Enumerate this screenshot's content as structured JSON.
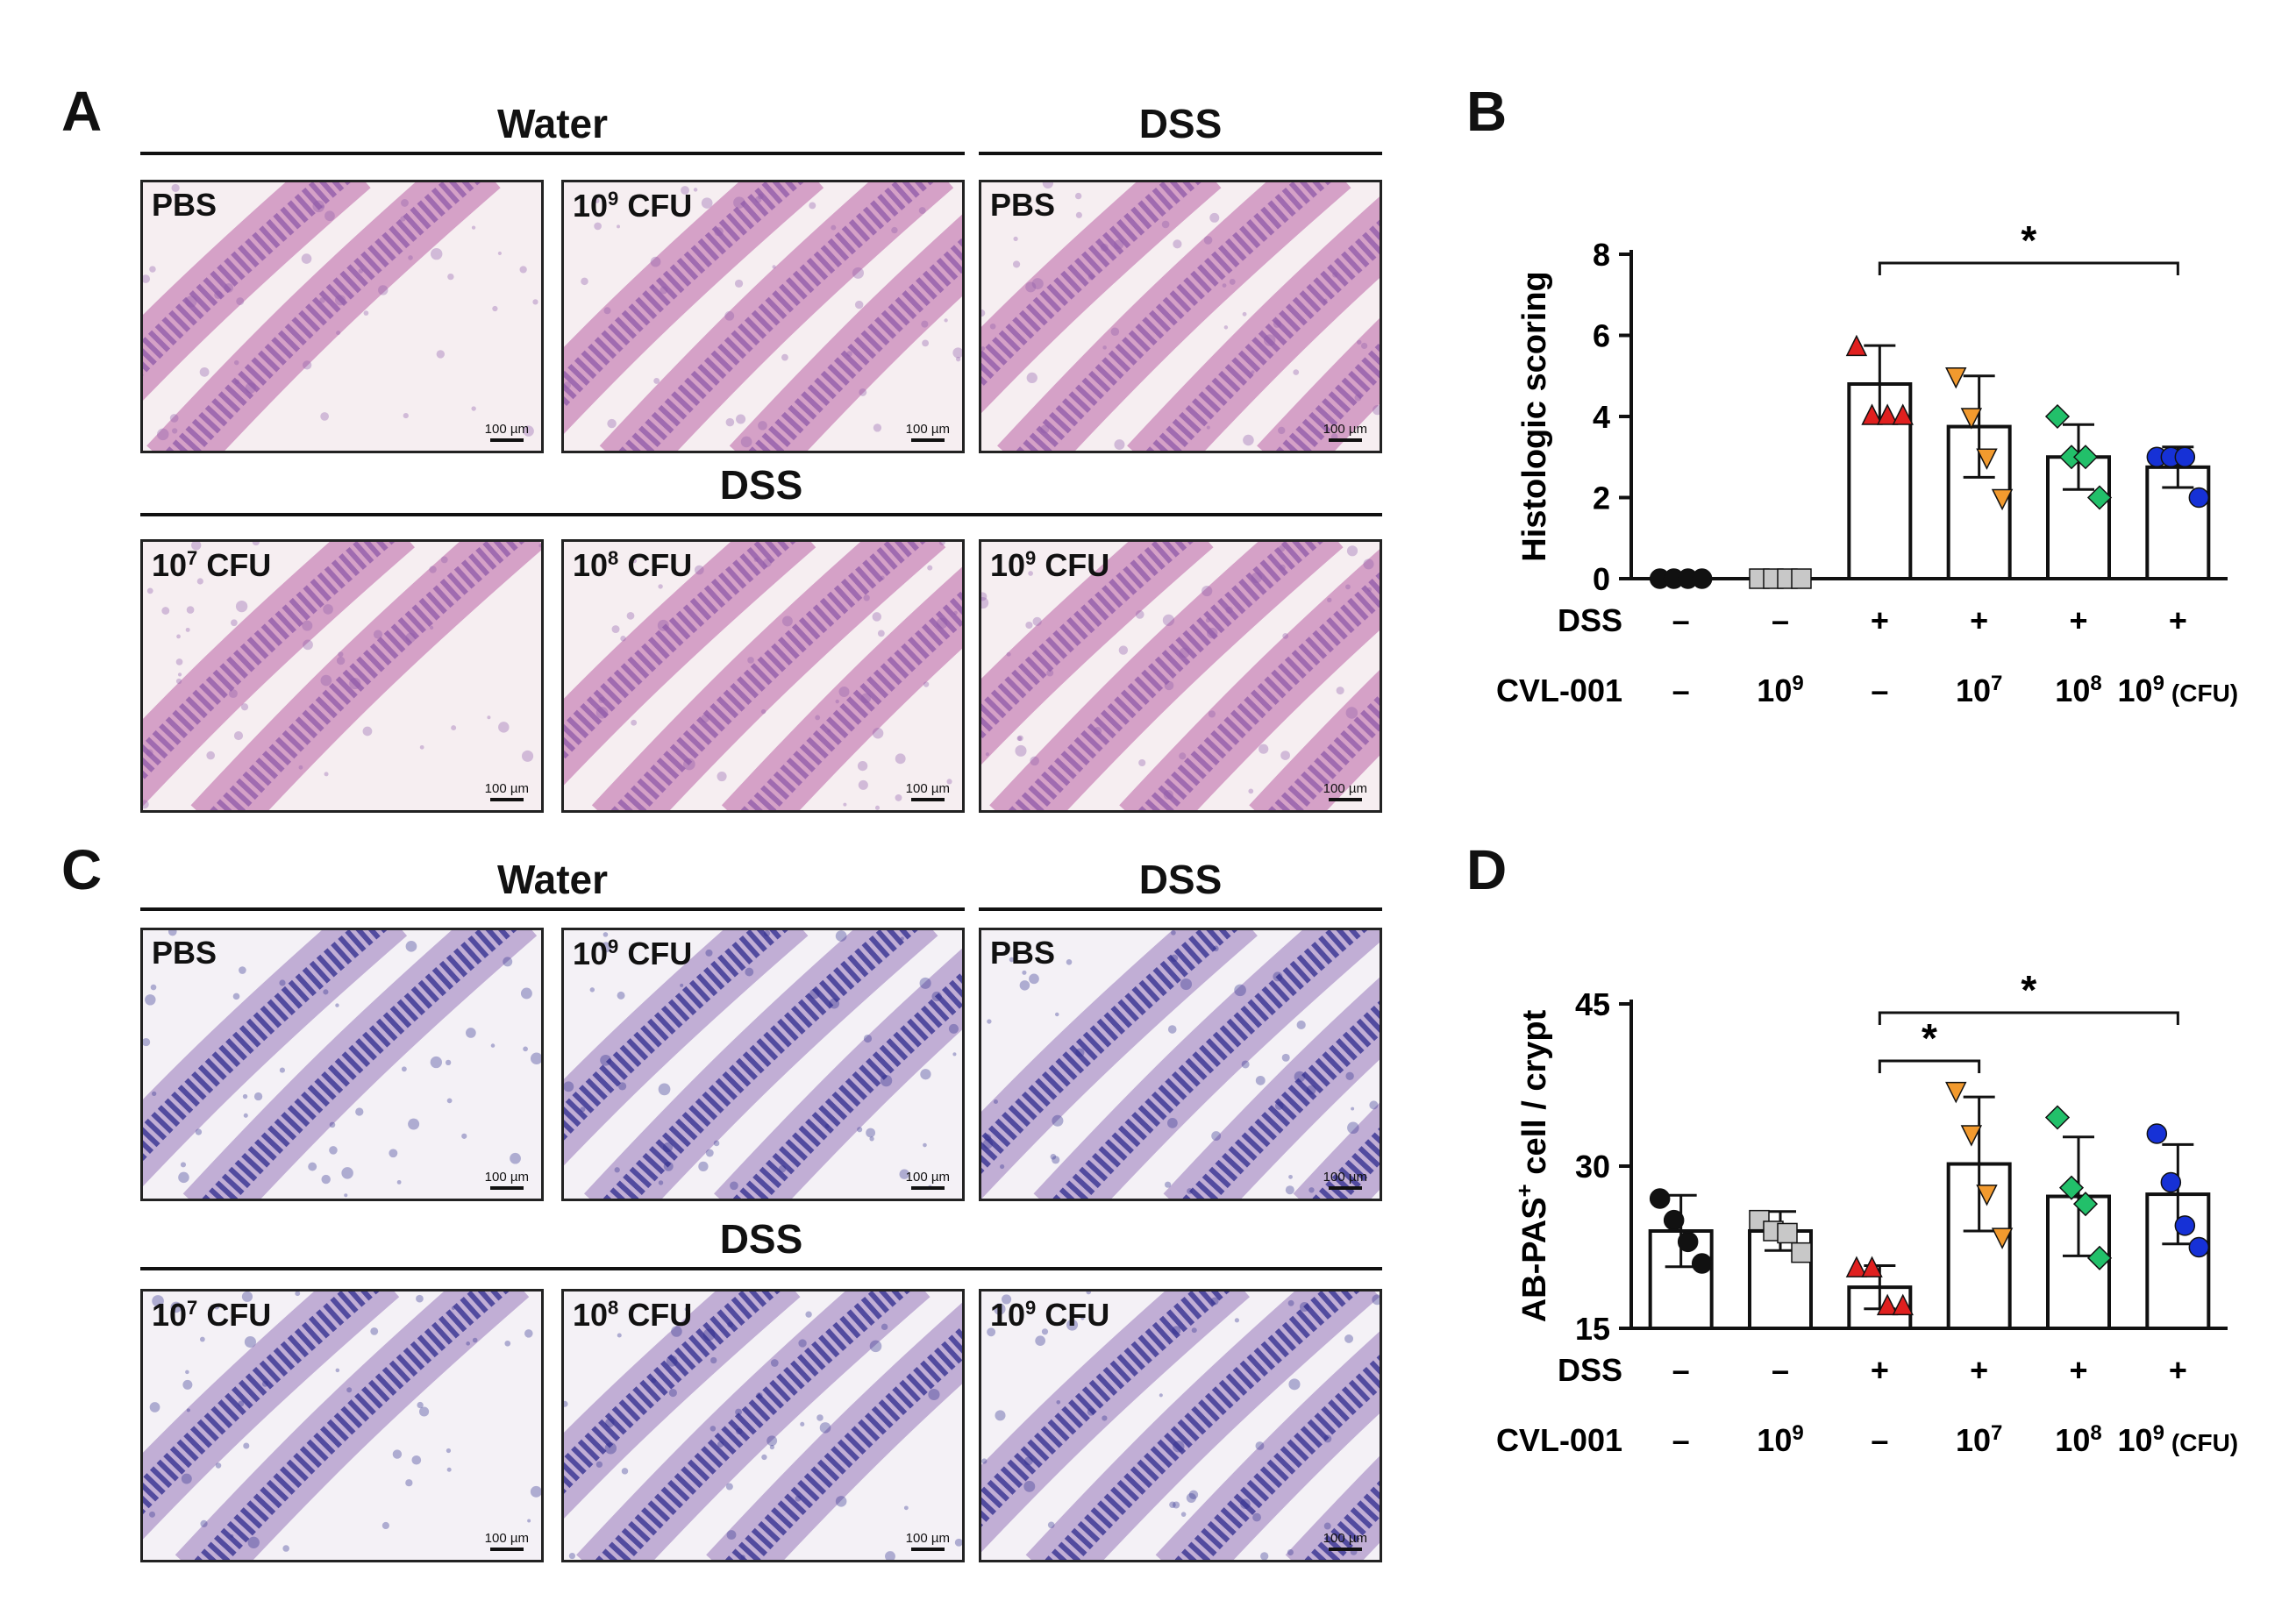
{
  "panels": {
    "A": "A",
    "B": "B",
    "C": "C",
    "D": "D"
  },
  "histology": {
    "water": "Water",
    "dss": "DSS",
    "scale": "100 µm",
    "labels": {
      "pbs": "PBS",
      "cfu9_base": "10",
      "cfu9_exp": "9",
      "cfu7_base": "10",
      "cfu7_exp": "7",
      "cfu8_base": "10",
      "cfu8_exp": "8",
      "cfu_unit": "CFU"
    },
    "colors": {
      "he_background": "#f6eef1",
      "he_tissue": "#cf93c0",
      "he_mucosa": "#8d5aa8",
      "pas_background": "#f4f1f6",
      "pas_tissue": "#b7a2cf",
      "pas_mucosa": "#2c2a8c"
    }
  },
  "conditions": {
    "dss_label": "DSS",
    "cvl_label": "CVL-001",
    "dss": [
      "–",
      "–",
      "+",
      "+",
      "+",
      "+"
    ],
    "cvl_base": [
      "–",
      "10",
      "–",
      "10",
      "10",
      "10"
    ],
    "cvl_exp": [
      "",
      "9",
      "",
      "7",
      "8",
      "9"
    ],
    "unit": "(CFU)"
  },
  "chart_data": [
    {
      "panel": "B",
      "type": "bar",
      "ylabel": "Histologic scoring",
      "ylim": [
        0,
        8
      ],
      "yticks": [
        0,
        2,
        4,
        6,
        8
      ],
      "groups": 6,
      "means": [
        0,
        0,
        4.8,
        3.75,
        3.0,
        2.75
      ],
      "sd": [
        0,
        0,
        0.95,
        1.25,
        0.8,
        0.5
      ],
      "points": [
        [
          0,
          0,
          0,
          0
        ],
        [
          0,
          0,
          0,
          0
        ],
        [
          5.7,
          4.0,
          4.0,
          4.0
        ],
        [
          5.0,
          4.0,
          3.0,
          2.0
        ],
        [
          4.0,
          3.0,
          3.0,
          2.0
        ],
        [
          3.0,
          3.0,
          3.0,
          2.0
        ]
      ],
      "markers": [
        "circle",
        "square",
        "triangle-up",
        "triangle-down",
        "diamond",
        "circle"
      ],
      "colors": [
        "#111111",
        "#c8c8c8",
        "#e0201f",
        "#f29a2e",
        "#22c06a",
        "#1631d6"
      ],
      "significance": [
        {
          "from": 2,
          "to": 5,
          "label": "*"
        }
      ]
    },
    {
      "panel": "D",
      "type": "bar",
      "ylabel": "AB-PAS+ cell / crypt",
      "ylabel_main": "AB-PAS",
      "ylabel_sup": "+",
      "ylabel_rest": " cell / crypt",
      "ylim": [
        15,
        45
      ],
      "yticks": [
        15,
        30,
        45
      ],
      "groups": 6,
      "means": [
        24.0,
        24.0,
        18.8,
        30.2,
        27.2,
        27.4
      ],
      "sd": [
        3.3,
        1.8,
        2.0,
        6.2,
        5.5,
        4.6
      ],
      "points": [
        [
          27.0,
          25.0,
          23.0,
          21.0
        ],
        [
          25.0,
          24.0,
          23.8,
          22.0
        ],
        [
          20.5,
          20.5,
          17.0,
          17.0
        ],
        [
          37.0,
          33.0,
          27.5,
          23.5
        ],
        [
          34.5,
          28.0,
          26.5,
          21.5
        ],
        [
          33.0,
          28.5,
          24.5,
          22.5
        ]
      ],
      "markers": [
        "circle",
        "square",
        "triangle-up",
        "triangle-down",
        "diamond",
        "circle"
      ],
      "colors": [
        "#111111",
        "#c8c8c8",
        "#e0201f",
        "#f29a2e",
        "#22c06a",
        "#1631d6"
      ],
      "significance": [
        {
          "from": 2,
          "to": 3,
          "label": "*",
          "level": 1
        },
        {
          "from": 2,
          "to": 5,
          "label": "*",
          "level": 2
        }
      ]
    }
  ]
}
